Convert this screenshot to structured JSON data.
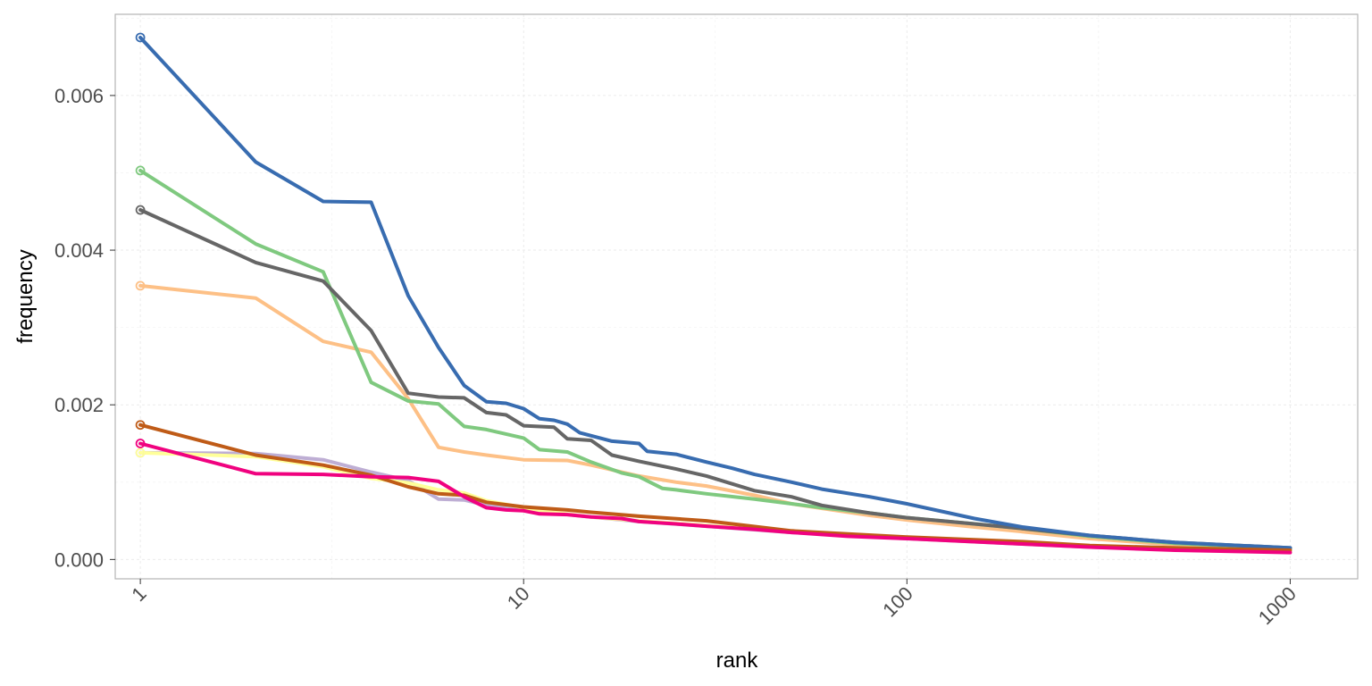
{
  "chart_data": {
    "type": "line",
    "title": "",
    "xlabel": "rank",
    "ylabel": "frequency",
    "x_scale": "log10",
    "xlim": [
      0.86,
      1500
    ],
    "ylim": [
      -0.00025,
      0.00705
    ],
    "x_ticks": [
      1,
      10,
      100,
      1000
    ],
    "x_tick_labels": [
      "1",
      "10",
      "100",
      "1000"
    ],
    "y_ticks": [
      0,
      0.002,
      0.004,
      0.006
    ],
    "y_tick_labels": [
      "0.000",
      "0.002",
      "0.004",
      "0.006"
    ],
    "grid": true,
    "legend": "none",
    "markers": "open circle at rank 1 of each series",
    "series": [
      {
        "color": "#beaed4",
        "points": [
          [
            1,
            0.00138
          ],
          [
            2,
            0.00137
          ],
          [
            3,
            0.00129
          ],
          [
            4,
            0.00113
          ],
          [
            5,
            0.00102
          ],
          [
            6,
            0.00078
          ],
          [
            7,
            0.00077
          ],
          [
            8,
            0.0007
          ],
          [
            10,
            0.00065
          ],
          [
            12,
            0.0006
          ],
          [
            15,
            0.00055
          ],
          [
            20,
            0.00049
          ],
          [
            30,
            0.00043
          ],
          [
            50,
            0.00035
          ],
          [
            70,
            0.00031
          ],
          [
            100,
            0.00027
          ],
          [
            200,
            0.0002
          ],
          [
            300,
            0.00016
          ],
          [
            500,
            0.00013
          ],
          [
            1000,
            0.0001
          ]
        ]
      },
      {
        "color": "#ffff99",
        "points": [
          [
            1,
            0.00138
          ],
          [
            2,
            0.00133
          ],
          [
            3,
            0.0012
          ],
          [
            4,
            0.00105
          ],
          [
            5,
            0.00099
          ],
          [
            6,
            0.0009
          ],
          [
            7,
            0.00086
          ],
          [
            8,
            0.00076
          ],
          [
            10,
            0.00067
          ],
          [
            12,
            0.00061
          ],
          [
            15,
            0.00055
          ],
          [
            20,
            0.0005
          ],
          [
            30,
            0.00044
          ],
          [
            50,
            0.00036
          ],
          [
            70,
            0.00032
          ],
          [
            100,
            0.00028
          ],
          [
            200,
            0.00021
          ],
          [
            300,
            0.00017
          ],
          [
            500,
            0.00014
          ],
          [
            1000,
            0.00011
          ]
        ]
      },
      {
        "color": "#fdc086",
        "points": [
          [
            1,
            0.00354
          ],
          [
            2,
            0.00338
          ],
          [
            3,
            0.00282
          ],
          [
            4,
            0.00268
          ],
          [
            5,
            0.00208
          ],
          [
            6,
            0.00145
          ],
          [
            7,
            0.00139
          ],
          [
            8,
            0.00135
          ],
          [
            10,
            0.00129
          ],
          [
            13,
            0.00128
          ],
          [
            15,
            0.00122
          ],
          [
            20,
            0.00108
          ],
          [
            25,
            0.001
          ],
          [
            30,
            0.00095
          ],
          [
            40,
            0.00083
          ],
          [
            50,
            0.00072
          ],
          [
            60,
            0.00066
          ],
          [
            80,
            0.00057
          ],
          [
            100,
            0.00051
          ],
          [
            150,
            0.00042
          ],
          [
            200,
            0.00036
          ],
          [
            300,
            0.00027
          ],
          [
            500,
            0.00019
          ],
          [
            1000,
            0.00014
          ]
        ]
      },
      {
        "color": "#7fc97f",
        "points": [
          [
            1,
            0.00503
          ],
          [
            2,
            0.00408
          ],
          [
            3,
            0.00372
          ],
          [
            4,
            0.00229
          ],
          [
            5,
            0.00205
          ],
          [
            6,
            0.00201
          ],
          [
            7,
            0.00172
          ],
          [
            8,
            0.00168
          ],
          [
            10,
            0.00157
          ],
          [
            11,
            0.00142
          ],
          [
            13,
            0.00139
          ],
          [
            15,
            0.00126
          ],
          [
            18,
            0.00112
          ],
          [
            20,
            0.00107
          ],
          [
            23,
            0.00092
          ],
          [
            25,
            0.0009
          ],
          [
            30,
            0.00085
          ],
          [
            40,
            0.00078
          ],
          [
            50,
            0.00072
          ],
          [
            60,
            0.00067
          ],
          [
            80,
            0.0006
          ],
          [
            100,
            0.00054
          ],
          [
            150,
            0.00046
          ],
          [
            200,
            0.0004
          ],
          [
            300,
            0.0003
          ],
          [
            500,
            0.00021
          ],
          [
            1000,
            0.00014
          ]
        ]
      },
      {
        "color": "#666666",
        "points": [
          [
            1,
            0.00452
          ],
          [
            2,
            0.00384
          ],
          [
            3,
            0.0036
          ],
          [
            4,
            0.00296
          ],
          [
            5,
            0.00215
          ],
          [
            6,
            0.0021
          ],
          [
            7,
            0.00209
          ],
          [
            8,
            0.0019
          ],
          [
            9,
            0.00187
          ],
          [
            10,
            0.00173
          ],
          [
            12,
            0.00171
          ],
          [
            13,
            0.00156
          ],
          [
            15,
            0.00154
          ],
          [
            17,
            0.00135
          ],
          [
            20,
            0.00127
          ],
          [
            25,
            0.00117
          ],
          [
            30,
            0.00108
          ],
          [
            40,
            0.00089
          ],
          [
            50,
            0.00081
          ],
          [
            60,
            0.0007
          ],
          [
            80,
            0.0006
          ],
          [
            100,
            0.00054
          ],
          [
            150,
            0.00046
          ],
          [
            200,
            0.0004
          ],
          [
            300,
            0.00031
          ],
          [
            500,
            0.00022
          ],
          [
            1000,
            0.00015
          ]
        ]
      },
      {
        "color": "#386cb0",
        "points": [
          [
            1,
            0.00675
          ],
          [
            2,
            0.00514
          ],
          [
            3,
            0.00463
          ],
          [
            4,
            0.00462
          ],
          [
            5,
            0.00341
          ],
          [
            6,
            0.00274
          ],
          [
            7,
            0.00225
          ],
          [
            8,
            0.00204
          ],
          [
            9,
            0.00202
          ],
          [
            10,
            0.00195
          ],
          [
            11,
            0.00182
          ],
          [
            12,
            0.0018
          ],
          [
            13,
            0.00175
          ],
          [
            14,
            0.00164
          ],
          [
            17,
            0.00153
          ],
          [
            20,
            0.0015
          ],
          [
            21,
            0.0014
          ],
          [
            25,
            0.00136
          ],
          [
            30,
            0.00126
          ],
          [
            35,
            0.00118
          ],
          [
            40,
            0.0011
          ],
          [
            50,
            0.001
          ],
          [
            60,
            0.00091
          ],
          [
            80,
            0.00081
          ],
          [
            100,
            0.00072
          ],
          [
            150,
            0.00053
          ],
          [
            200,
            0.00042
          ],
          [
            300,
            0.00031
          ],
          [
            500,
            0.00022
          ],
          [
            1000,
            0.00015
          ]
        ]
      },
      {
        "color": "#bf5b17",
        "points": [
          [
            1,
            0.00174
          ],
          [
            2,
            0.00135
          ],
          [
            3,
            0.00122
          ],
          [
            4,
            0.00109
          ],
          [
            5,
            0.00094
          ],
          [
            6,
            0.00085
          ],
          [
            7,
            0.00083
          ],
          [
            8,
            0.00074
          ],
          [
            10,
            0.00068
          ],
          [
            13,
            0.00064
          ],
          [
            15,
            0.00061
          ],
          [
            20,
            0.00056
          ],
          [
            30,
            0.0005
          ],
          [
            50,
            0.00037
          ],
          [
            70,
            0.00033
          ],
          [
            100,
            0.00029
          ],
          [
            200,
            0.00023
          ],
          [
            300,
            0.00018
          ],
          [
            500,
            0.00015
          ],
          [
            1000,
            0.00012
          ]
        ]
      },
      {
        "color": "#f0027f",
        "points": [
          [
            1,
            0.0015
          ],
          [
            2,
            0.00111
          ],
          [
            3,
            0.0011
          ],
          [
            4,
            0.00107
          ],
          [
            5,
            0.00106
          ],
          [
            6,
            0.00101
          ],
          [
            7,
            0.00081
          ],
          [
            8,
            0.00067
          ],
          [
            9,
            0.00064
          ],
          [
            10,
            0.00063
          ],
          [
            11,
            0.00059
          ],
          [
            13,
            0.00058
          ],
          [
            15,
            0.00055
          ],
          [
            18,
            0.00053
          ],
          [
            20,
            0.00049
          ],
          [
            25,
            0.00046
          ],
          [
            30,
            0.00043
          ],
          [
            40,
            0.00039
          ],
          [
            50,
            0.00035
          ],
          [
            70,
            0.0003
          ],
          [
            100,
            0.00027
          ],
          [
            200,
            0.0002
          ],
          [
            300,
            0.00016
          ],
          [
            500,
            0.00012
          ],
          [
            1000,
            9e-05
          ]
        ]
      }
    ]
  }
}
